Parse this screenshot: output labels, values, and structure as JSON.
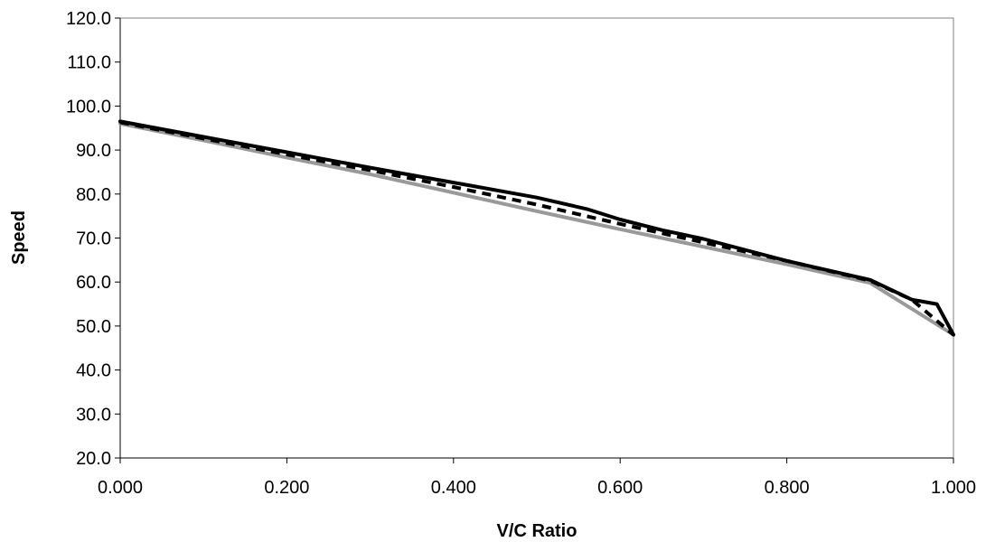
{
  "chart_data": {
    "type": "line",
    "title": "",
    "xlabel": "V/C Ratio",
    "ylabel": "Speed",
    "xlim": [
      0,
      1
    ],
    "ylim": [
      20,
      120
    ],
    "x_ticks": [
      "0.000",
      "0.200",
      "0.400",
      "0.600",
      "0.800",
      "1.000"
    ],
    "y_ticks": [
      "20.0",
      "30.0",
      "40.0",
      "50.0",
      "60.0",
      "70.0",
      "80.0",
      "90.0",
      "100.0",
      "110.0",
      "120.0"
    ],
    "grid": false,
    "legend": "none",
    "series": [
      {
        "style": "solid",
        "color": "#999999",
        "x": [
          0.0,
          0.1,
          0.2,
          0.3,
          0.4,
          0.5,
          0.6,
          0.7,
          0.8,
          0.9,
          1.0
        ],
        "y": [
          96.0,
          92.2,
          88.3,
          84.5,
          80.3,
          76.1,
          72.0,
          68.0,
          64.0,
          59.8,
          48.0
        ]
      },
      {
        "style": "dashed",
        "color": "#000000",
        "x": [
          0.0,
          0.1,
          0.2,
          0.3,
          0.4,
          0.5,
          0.6,
          0.7,
          0.8,
          0.9,
          0.95,
          1.0
        ],
        "y": [
          96.3,
          92.6,
          89.0,
          85.4,
          81.6,
          77.6,
          73.2,
          69.0,
          64.8,
          60.3,
          56.0,
          48.0
        ]
      },
      {
        "style": "solid",
        "color": "#000000",
        "x": [
          0.0,
          0.1,
          0.2,
          0.3,
          0.4,
          0.5,
          0.56,
          0.6,
          0.65,
          0.7,
          0.8,
          0.9,
          0.95,
          0.98,
          1.0
        ],
        "y": [
          96.5,
          93.0,
          89.5,
          86.0,
          82.6,
          79.2,
          76.6,
          74.2,
          71.8,
          69.8,
          64.8,
          60.5,
          56.0,
          55.0,
          48.0
        ]
      }
    ]
  }
}
